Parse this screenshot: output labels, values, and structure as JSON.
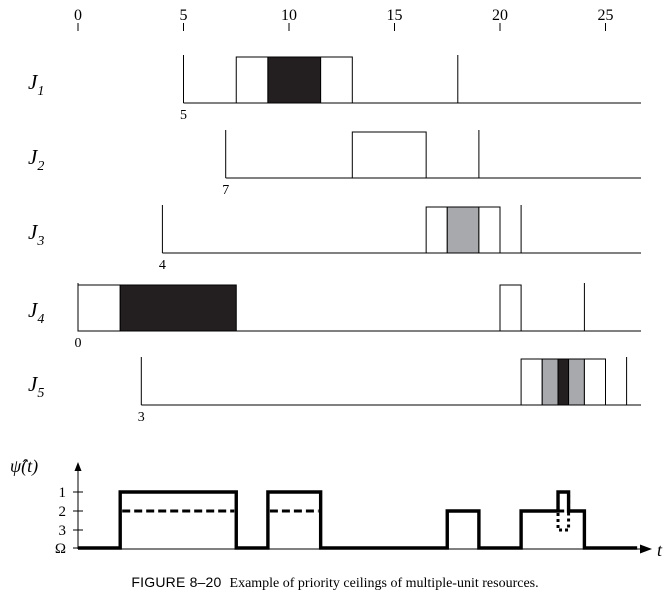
{
  "figure": {
    "number": "FIGURE 8–20",
    "caption": "Example of priority ceilings of multiple-unit resources."
  },
  "time_axis": {
    "ticks": [
      0,
      5,
      10,
      15,
      20,
      25
    ],
    "tick_labels": [
      "0",
      "5",
      "10",
      "15",
      "20",
      "25"
    ],
    "range": [
      0,
      27
    ]
  },
  "colors": {
    "dark": "#231f20",
    "gray": "#a7a9ac",
    "line": "#000000"
  },
  "jobs": [
    {
      "name": "J",
      "sub": "1",
      "release": 5,
      "release_label": "5",
      "deadline": 18,
      "segments": [
        {
          "start": 5,
          "end": 7.5,
          "kind": "idle"
        },
        {
          "start": 7.5,
          "end": 9,
          "kind": "white"
        },
        {
          "start": 9,
          "end": 11.5,
          "kind": "dark"
        },
        {
          "start": 11.5,
          "end": 13,
          "kind": "white"
        }
      ]
    },
    {
      "name": "J",
      "sub": "2",
      "release": 7,
      "release_label": "7",
      "deadline": 19,
      "segments": [
        {
          "start": 7,
          "end": 13,
          "kind": "idle"
        },
        {
          "start": 13,
          "end": 16.5,
          "kind": "white"
        }
      ]
    },
    {
      "name": "J",
      "sub": "3",
      "release": 4,
      "release_label": "4",
      "deadline": 21,
      "segments": [
        {
          "start": 16.5,
          "end": 17.5,
          "kind": "white"
        },
        {
          "start": 17.5,
          "end": 19,
          "kind": "gray"
        },
        {
          "start": 19,
          "end": 20,
          "kind": "white"
        }
      ]
    },
    {
      "name": "J",
      "sub": "4",
      "release": 0,
      "release_label": "0",
      "deadline": 24,
      "segments": [
        {
          "start": 0,
          "end": 2,
          "kind": "white"
        },
        {
          "start": 2,
          "end": 7.5,
          "kind": "dark"
        },
        {
          "start": 20,
          "end": 21,
          "kind": "white"
        }
      ]
    },
    {
      "name": "J",
      "sub": "5",
      "release": 3,
      "release_label": "3",
      "deadline": 26,
      "segments": [
        {
          "start": 21,
          "end": 22,
          "kind": "white"
        },
        {
          "start": 22,
          "end": 22.75,
          "kind": "gray"
        },
        {
          "start": 22.75,
          "end": 23.25,
          "kind": "dark"
        },
        {
          "start": 23.25,
          "end": 24,
          "kind": "gray"
        },
        {
          "start": 24,
          "end": 25,
          "kind": "white"
        }
      ]
    }
  ],
  "ceiling_plot": {
    "ylabel": "ψ̂(t)",
    "xlabel": "t",
    "levels": [
      "1",
      "2",
      "3",
      "Ω"
    ],
    "solid_steps": [
      [
        0,
        "Ω"
      ],
      [
        2,
        "1"
      ],
      [
        7.5,
        "Ω"
      ],
      [
        9,
        "1"
      ],
      [
        11.5,
        "Ω"
      ],
      [
        17.5,
        "2"
      ],
      [
        19,
        "Ω"
      ],
      [
        21,
        "2"
      ],
      [
        22.75,
        "1"
      ],
      [
        23.25,
        "2"
      ],
      [
        24,
        "Ω"
      ],
      [
        26.5,
        "Ω"
      ]
    ],
    "dashed_steps": [
      [
        2,
        "2"
      ],
      [
        7.5,
        "2"
      ],
      [
        9,
        "2"
      ],
      [
        11.5,
        "2"
      ],
      [
        22,
        "2"
      ],
      [
        24,
        "2"
      ]
    ],
    "dotted_steps": [
      [
        22.75,
        "3"
      ],
      [
        23.25,
        "3"
      ]
    ]
  }
}
